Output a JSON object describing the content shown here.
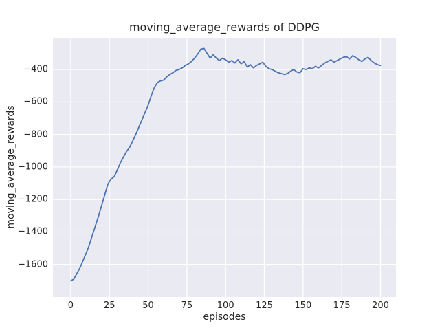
{
  "figure": {
    "background": "#ffffff"
  },
  "chart_data": {
    "type": "line",
    "title": "moving_average_rewards of DDPG",
    "xlabel": "episodes",
    "ylabel": "moving_average_rewards",
    "xlim": [
      -11.5,
      210
    ],
    "ylim": [
      -1800,
      -205
    ],
    "xticks": [
      0,
      25,
      50,
      75,
      100,
      125,
      150,
      175,
      200
    ],
    "xtick_labels": [
      "0",
      "25",
      "50",
      "75",
      "100",
      "125",
      "150",
      "175",
      "200"
    ],
    "yticks": [
      -400,
      -600,
      -800,
      -1000,
      -1200,
      -1400,
      -1600
    ],
    "ytick_labels": [
      "−400",
      "−600",
      "−800",
      "−1000",
      "−1200",
      "−1400",
      "−1600"
    ],
    "grid": true,
    "legend_position": "none",
    "colors": {
      "line": "#4c72b0",
      "axes_background": "#eaeaf2",
      "grid": "#ffffff",
      "figure_background": "#ffffff",
      "tick_text": "#262626"
    },
    "series_name": "moving_average_rewards",
    "x": [
      0,
      2,
      4,
      6,
      8,
      10,
      12,
      14,
      16,
      18,
      20,
      22,
      24,
      26,
      28,
      30,
      32,
      34,
      36,
      38,
      40,
      42,
      44,
      46,
      48,
      50,
      52,
      54,
      56,
      58,
      60,
      62,
      64,
      66,
      68,
      70,
      72,
      74,
      76,
      78,
      80,
      82,
      84,
      86,
      88,
      90,
      92,
      94,
      96,
      98,
      100,
      102,
      104,
      106,
      108,
      110,
      112,
      114,
      116,
      118,
      120,
      122,
      124,
      126,
      128,
      130,
      132,
      134,
      136,
      138,
      140,
      142,
      144,
      146,
      148,
      150,
      152,
      154,
      156,
      158,
      160,
      162,
      164,
      166,
      168,
      170,
      172,
      174,
      176,
      178,
      180,
      182,
      184,
      186,
      188,
      190,
      192,
      194,
      196,
      198,
      200
    ],
    "y": [
      -1700,
      -1690,
      -1655,
      -1620,
      -1575,
      -1530,
      -1480,
      -1420,
      -1360,
      -1300,
      -1235,
      -1170,
      -1105,
      -1075,
      -1060,
      -1020,
      -975,
      -940,
      -905,
      -880,
      -840,
      -800,
      -755,
      -710,
      -665,
      -620,
      -560,
      -510,
      -480,
      -470,
      -465,
      -445,
      -430,
      -420,
      -405,
      -400,
      -390,
      -375,
      -365,
      -350,
      -330,
      -305,
      -275,
      -270,
      -300,
      -330,
      -310,
      -330,
      -345,
      -330,
      -340,
      -355,
      -345,
      -360,
      -340,
      -365,
      -350,
      -385,
      -370,
      -390,
      -375,
      -365,
      -355,
      -380,
      -395,
      -400,
      -410,
      -420,
      -425,
      -430,
      -425,
      -410,
      -400,
      -415,
      -420,
      -395,
      -400,
      -390,
      -395,
      -380,
      -390,
      -375,
      -360,
      -350,
      -340,
      -355,
      -345,
      -335,
      -325,
      -320,
      -335,
      -315,
      -325,
      -340,
      -350,
      -335,
      -325,
      -345,
      -360,
      -370,
      -375
    ]
  }
}
